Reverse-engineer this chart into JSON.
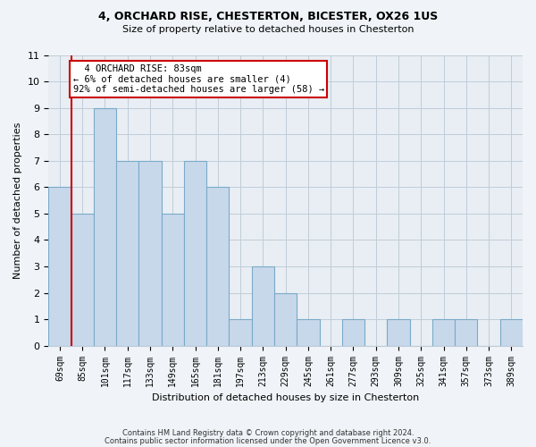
{
  "title1": "4, ORCHARD RISE, CHESTERTON, BICESTER, OX26 1US",
  "title2": "Size of property relative to detached houses in Chesterton",
  "xlabel": "Distribution of detached houses by size in Chesterton",
  "ylabel": "Number of detached properties",
  "categories": [
    "69sqm",
    "85sqm",
    "101sqm",
    "117sqm",
    "133sqm",
    "149sqm",
    "165sqm",
    "181sqm",
    "197sqm",
    "213sqm",
    "229sqm",
    "245sqm",
    "261sqm",
    "277sqm",
    "293sqm",
    "309sqm",
    "325sqm",
    "341sqm",
    "357sqm",
    "373sqm",
    "389sqm"
  ],
  "values": [
    6,
    5,
    9,
    7,
    7,
    5,
    7,
    6,
    1,
    3,
    2,
    1,
    0,
    1,
    0,
    1,
    0,
    1,
    1,
    0,
    1
  ],
  "bar_color": "#c8d8eb",
  "bar_edge_color": "#7aaac8",
  "highlight_line_color": "#cc0000",
  "annotation_text": "  4 ORCHARD RISE: 83sqm\n← 6% of detached houses are smaller (4)\n92% of semi-detached houses are larger (58) →",
  "annotation_border_color": "#cc0000",
  "ylim": [
    0,
    11
  ],
  "yticks": [
    0,
    1,
    2,
    3,
    4,
    5,
    6,
    7,
    8,
    9,
    10,
    11
  ],
  "footer_line1": "Contains HM Land Registry data © Crown copyright and database right 2024.",
  "footer_line2": "Contains public sector information licensed under the Open Government Licence v3.0.",
  "bg_color": "#f0f4f8",
  "plot_bg_color": "#e8eef4",
  "grid_color": "#c0ccd8"
}
